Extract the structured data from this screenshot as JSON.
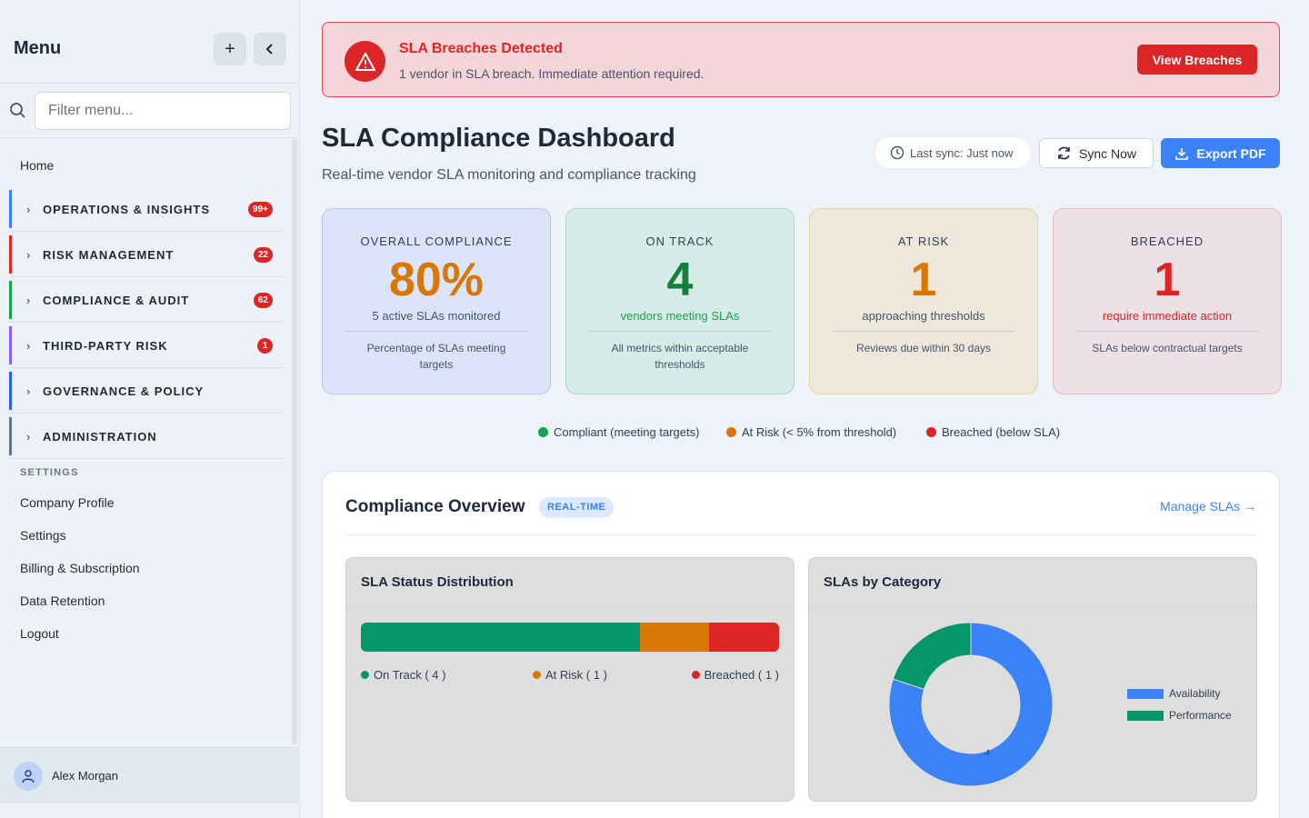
{
  "sidebar": {
    "title": "Menu",
    "search_placeholder": "Filter menu...",
    "home": "Home",
    "sections": [
      {
        "label": "OPERATIONS & INSIGHTS",
        "badge": "99+",
        "color": "#3b82f6"
      },
      {
        "label": "RISK MANAGEMENT",
        "badge": "22",
        "color": "#dc2626"
      },
      {
        "label": "COMPLIANCE & AUDIT",
        "badge": "62",
        "color": "#16a34a"
      },
      {
        "label": "THIRD-PARTY RISK",
        "badge": "1",
        "color": "#8b5cf6"
      },
      {
        "label": "GOVERNANCE & POLICY",
        "badge": "",
        "color": "#2563eb"
      },
      {
        "label": "ADMINISTRATION",
        "badge": "",
        "color": "#64748b"
      }
    ],
    "settings_heading": "SETTINGS",
    "settings_items": [
      "Company Profile",
      "Settings",
      "Billing & Subscription",
      "Data Retention",
      "Logout"
    ],
    "user": "Alex Morgan"
  },
  "alert": {
    "title": "SLA Breaches Detected",
    "message": "1 vendor in SLA breach. Immediate attention required.",
    "button": "View Breaches"
  },
  "header": {
    "title": "SLA Compliance Dashboard",
    "subtitle": "Real-time vendor SLA monitoring and compliance tracking",
    "last_sync": "Last sync: Just now",
    "sync_button": "Sync Now",
    "export_button": "Export PDF"
  },
  "cards": [
    {
      "title": "OVERALL COMPLIANCE",
      "value": "80%",
      "desc": "5 active SLAs monitored",
      "note": "Percentage of SLAs meeting targets",
      "color": "#d97706",
      "desc_color": "#475569",
      "bg": "#dbe4f8",
      "border": "#b9c8ee"
    },
    {
      "title": "ON TRACK",
      "value": "4",
      "desc": "vendors meeting SLAs",
      "note": "All metrics within acceptable thresholds",
      "color": "#15803d",
      "desc_color": "#16a34a",
      "bg": "#d6ece8",
      "border": "#a7dcc9"
    },
    {
      "title": "AT RISK",
      "value": "1",
      "desc": "approaching thresholds",
      "note": "Reviews due within 30 days",
      "color": "#d97706",
      "desc_color": "#475569",
      "bg": "#ede7dc",
      "border": "#ecd49c"
    },
    {
      "title": "BREACHED",
      "value": "1",
      "desc": "require immediate action",
      "note": "SLAs below contractual targets",
      "color": "#dc2626",
      "desc_color": "#dc2626",
      "bg": "#ede0e6",
      "border": "#f0b8bf"
    }
  ],
  "legend": [
    {
      "label": "Compliant (meeting targets)",
      "color": "#16a34a"
    },
    {
      "label": "At Risk (< 5% from threshold)",
      "color": "#d97706"
    },
    {
      "label": "Breached (below SLA)",
      "color": "#dc2626"
    }
  ],
  "overview": {
    "title": "Compliance Overview",
    "badge": "REAL-TIME",
    "manage_link": "Manage SLAs"
  },
  "status_distribution": {
    "title": "SLA Status Distribution",
    "segments": [
      {
        "label": "On Track ( 4 )",
        "value": 4,
        "color": "#059669"
      },
      {
        "label": "At Risk ( 1 )",
        "value": 1,
        "color": "#d97706"
      },
      {
        "label": "Breached ( 1 )",
        "value": 1,
        "color": "#dc2626"
      }
    ]
  },
  "chart_data": {
    "type": "pie",
    "title": "SLAs by Category",
    "categories": [
      "Availability",
      "Performance"
    ],
    "values": [
      4,
      1
    ],
    "colors": [
      "#3b82f6",
      "#059669"
    ],
    "data_labels": [
      "4",
      ""
    ]
  }
}
